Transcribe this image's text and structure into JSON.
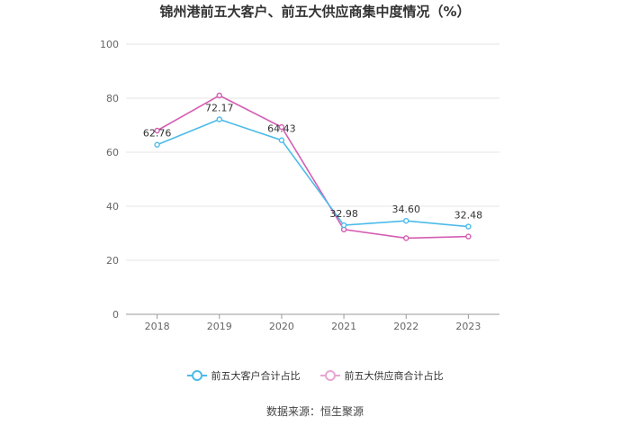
{
  "chart_data": {
    "type": "line",
    "title": "锦州港前五大客户、前五大供应商集中度情况（%）",
    "categories": [
      "2018",
      "2019",
      "2020",
      "2021",
      "2022",
      "2023"
    ],
    "series": [
      {
        "name": "前五大客户合计占比",
        "values": [
          62.76,
          72.17,
          64.43,
          32.98,
          34.6,
          32.48
        ],
        "labels": [
          "62.76",
          "72.17",
          "64.43",
          "32.98",
          "34.60",
          "32.48"
        ],
        "color": "#4cbbe9"
      },
      {
        "name": "前五大供应商合计占比",
        "values": [
          68.0,
          81.0,
          69.3,
          31.4,
          28.2,
          28.8
        ],
        "color": "#d45db2"
      }
    ],
    "ylim": [
      0,
      100
    ],
    "yticks": [
      0,
      20,
      40,
      60,
      80,
      100
    ],
    "grid": true,
    "legend": "bottom-center"
  },
  "source_text": "数据来源：恒生聚源"
}
